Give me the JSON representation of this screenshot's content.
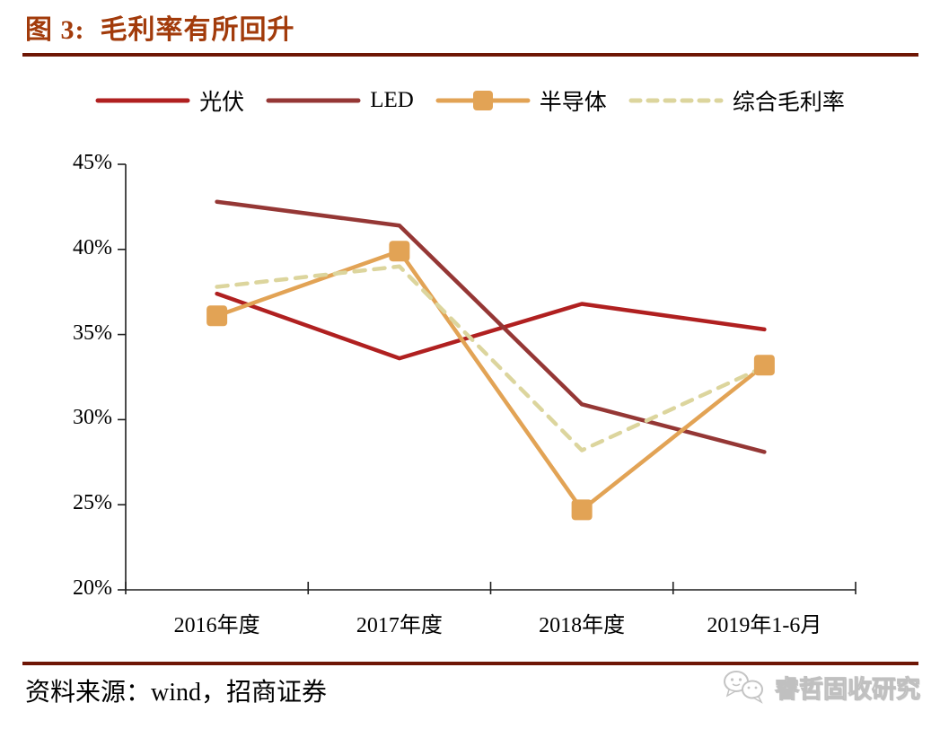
{
  "header": {
    "title": "图 3:  毛利率有所回升"
  },
  "colors": {
    "title": "#A23B0B",
    "rule": "#6E1605",
    "axis": "#1F1F1F",
    "watermark_gray": "#C4C4C4"
  },
  "chart_data": {
    "type": "line",
    "title": "毛利率有所回升",
    "categories": [
      "2016年度",
      "2017年度",
      "2018年度",
      "2019年1-6月"
    ],
    "series": [
      {
        "name": "光伏",
        "values": [
          37.4,
          33.6,
          36.8,
          35.3
        ],
        "color": "#B02020",
        "style": "solid",
        "marker": "none"
      },
      {
        "name": "LED",
        "values": [
          42.8,
          41.4,
          30.9,
          28.1
        ],
        "color": "#953735",
        "style": "solid",
        "marker": "none"
      },
      {
        "name": "半导体",
        "values": [
          36.1,
          39.9,
          24.7,
          33.2
        ],
        "color": "#E2A355",
        "style": "solid",
        "marker": "square"
      },
      {
        "name": "综合毛利率",
        "values": [
          37.8,
          39.0,
          28.2,
          33.1
        ],
        "color": "#DCD59D",
        "style": "dashed",
        "marker": "none"
      }
    ],
    "xlabel": "",
    "ylabel": "",
    "ylim": [
      20,
      45
    ],
    "y_tick_step": 5,
    "y_tick_labels": [
      "20%",
      "25%",
      "30%",
      "35%",
      "40%",
      "45%"
    ],
    "grid": false,
    "legend_position": "top"
  },
  "footer": {
    "source": "资料来源：wind，招商证券",
    "watermark": "睿哲固收研究"
  }
}
